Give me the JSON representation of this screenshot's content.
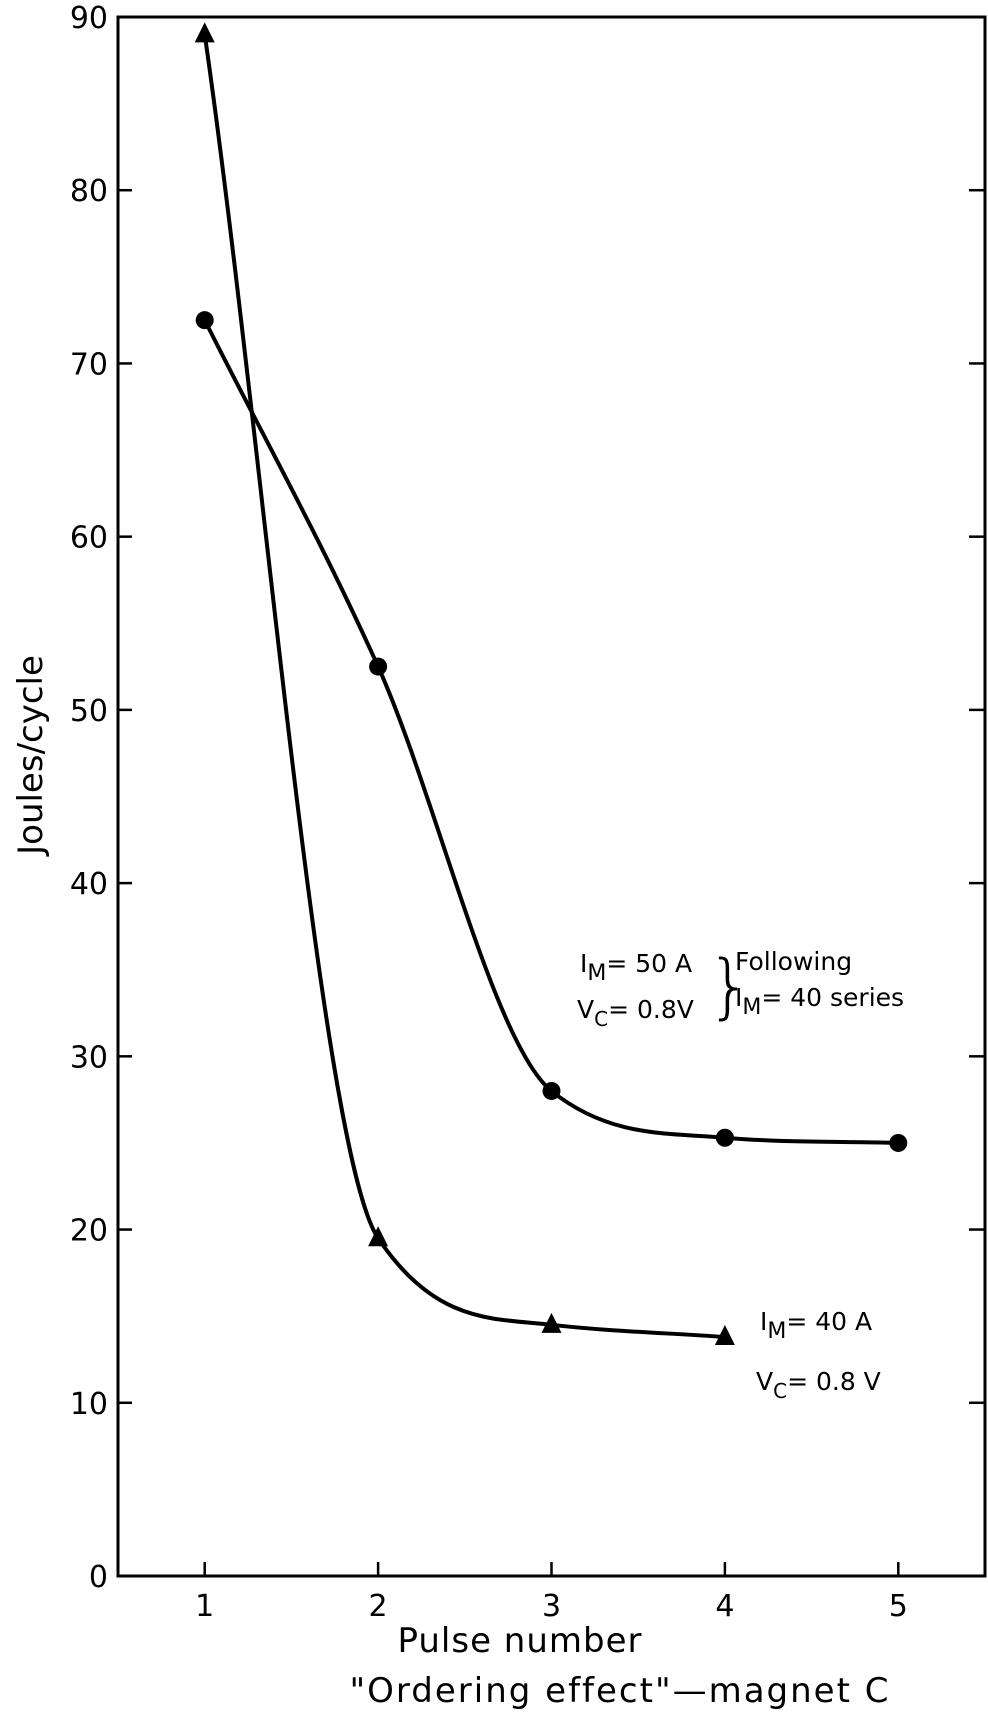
{
  "chart_data": {
    "type": "line",
    "xlabel": "Pulse number",
    "ylabel": "Joules/cycle",
    "caption": "\"Ordering effect\"—magnet C",
    "xlim": [
      0.5,
      5.5
    ],
    "ylim": [
      0,
      90
    ],
    "x_ticks": [
      1,
      2,
      3,
      4,
      5
    ],
    "y_ticks": [
      0,
      10,
      20,
      30,
      40,
      50,
      60,
      70,
      80,
      90
    ],
    "grid": false,
    "series": [
      {
        "marker": "circle",
        "color": "#000000",
        "x": [
          1,
          2,
          3,
          4,
          5
        ],
        "y": [
          72.5,
          52.5,
          28,
          25.3,
          25
        ]
      },
      {
        "marker": "triangle",
        "color": "#000000",
        "x": [
          1,
          2,
          3,
          4
        ],
        "y": [
          89,
          19.5,
          14.5,
          13.8
        ]
      }
    ],
    "annotations": {
      "a1": {
        "I": "I",
        "I_sub": "M",
        "I_val": "= 50 A",
        "V": "V",
        "V_sub": "C",
        "V_val": "= 0.8V",
        "brace": "}",
        "r1": "Following",
        "r2a": "I",
        "r2sub": "M",
        "r2b": "= 40 series"
      },
      "a2": {
        "I": "I",
        "I_sub": "M",
        "I_val": "= 40 A",
        "V": "V",
        "V_sub": "C",
        "V_val": "= 0.8 V"
      }
    }
  }
}
